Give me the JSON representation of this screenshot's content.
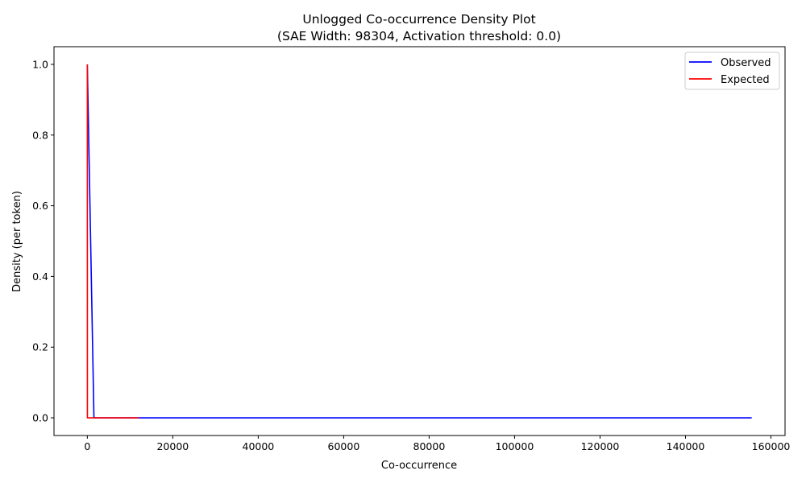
{
  "chart_data": {
    "type": "line",
    "title": "Unlogged Co-occurrence Density Plot",
    "subtitle": "(SAE Width: 98304, Activation threshold: 0.0)",
    "xlabel": "Co-occurrence",
    "ylabel": "Density (per token)",
    "xlim": [
      -7800,
      163300
    ],
    "ylim": [
      -0.05,
      1.05
    ],
    "xticks": [
      0,
      20000,
      40000,
      60000,
      80000,
      100000,
      120000,
      140000,
      160000
    ],
    "xtick_labels": [
      "0",
      "20000",
      "40000",
      "60000",
      "80000",
      "100000",
      "120000",
      "140000",
      "160000"
    ],
    "yticks": [
      0.0,
      0.2,
      0.4,
      0.6,
      0.8,
      1.0
    ],
    "ytick_labels": [
      "0.0",
      "0.2",
      "0.4",
      "0.6",
      "0.8",
      "1.0"
    ],
    "grid": false,
    "legend_position": "top-right",
    "series": [
      {
        "name": "Observed",
        "color": "#0000ff",
        "x": [
          0,
          1550,
          155500
        ],
        "y": [
          1.0,
          0.0,
          0.0
        ]
      },
      {
        "name": "Expected",
        "color": "#ff0000",
        "x": [
          0,
          20,
          12000
        ],
        "y": [
          1.0,
          0.0,
          0.0
        ]
      }
    ]
  }
}
